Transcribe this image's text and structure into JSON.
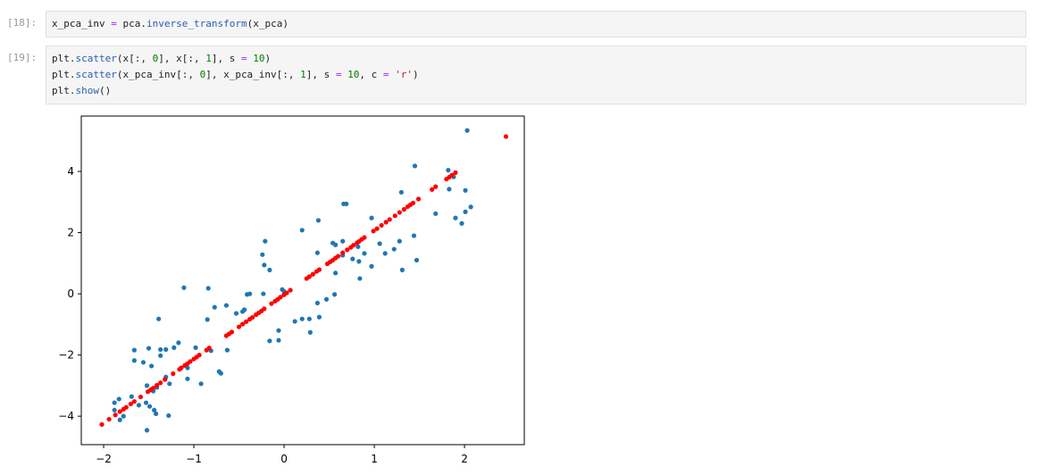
{
  "cells": [
    {
      "prompt": "[18]:",
      "lines": [
        "x_pca_inv = pca.inverse_transform(x_pca)"
      ]
    },
    {
      "prompt": "[19]:",
      "lines": [
        "plt.scatter(x[:, 0], x[:, 1], s = 10)",
        "plt.scatter(x_pca_inv[:, 0], x_pca_inv[:, 1], s = 10, c = 'r')",
        "plt.show()"
      ]
    }
  ],
  "chart_data": {
    "type": "scatter",
    "xlim": [
      -2.248,
      2.663
    ],
    "ylim": [
      -4.93,
      5.81
    ],
    "xticks": [
      {
        "value": -2,
        "label": "−2"
      },
      {
        "value": -1,
        "label": "−1"
      },
      0,
      1,
      2
    ],
    "yticks": [
      {
        "value": -4,
        "label": "−4"
      },
      {
        "value": -2,
        "label": "−2"
      },
      0,
      2,
      4
    ],
    "series": [
      {
        "color": "#1f77b4",
        "x": [
          2.03,
          1.45,
          1.82,
          1.88,
          1.83,
          2.01,
          1.3,
          1.68,
          2.07,
          2.01,
          1.9,
          1.97,
          0.97,
          0.66,
          0.69,
          0.38,
          0.2,
          1.44,
          1.28,
          0.65,
          0.54,
          0.57,
          1.22,
          1.06,
          0.89,
          1.12,
          0.82,
          1.47,
          0.76,
          0.65,
          0.83,
          1.31,
          0.97,
          0.84,
          -0.21,
          0.37,
          -0.24,
          -0.22,
          -0.16,
          0.57,
          -0.38,
          -0.41,
          -0.23,
          -0.02,
          0.0,
          -1.11,
          -0.84,
          -0.64,
          -0.53,
          -0.46,
          -0.44,
          -0.77,
          -0.85,
          0.56,
          0.47,
          0.37,
          0.39,
          0.2,
          0.28,
          0.12,
          0.29,
          -0.06,
          -0.16,
          -0.06,
          -1.39,
          -1.66,
          -1.5,
          -1.37,
          -1.31,
          -1.22,
          -1.17,
          -0.98,
          -0.81,
          -0.72,
          -0.7,
          -0.63,
          -1.66,
          -1.56,
          -1.47,
          -1.37,
          -1.07,
          -1.07,
          -0.92,
          -1.31,
          -1.52,
          -1.27,
          -1.47,
          -1.41,
          -1.88,
          -1.83,
          -1.69,
          -1.45,
          -1.53,
          -1.61,
          -1.49,
          -1.44,
          -1.42,
          -1.78,
          -1.82,
          -1.28,
          -1.88,
          -1.52
        ],
        "values": [
          5.34,
          4.18,
          4.04,
          3.82,
          3.42,
          3.38,
          3.32,
          2.62,
          2.84,
          2.68,
          2.48,
          2.3,
          2.48,
          2.94,
          2.94,
          2.4,
          2.08,
          1.9,
          1.72,
          1.72,
          1.66,
          1.6,
          1.46,
          1.64,
          1.32,
          1.32,
          1.54,
          1.1,
          1.14,
          1.26,
          1.06,
          0.78,
          0.9,
          0.5,
          1.72,
          1.34,
          1.28,
          0.94,
          0.78,
          0.68,
          0.0,
          -0.02,
          0.0,
          0.14,
          0.08,
          0.2,
          0.18,
          -0.38,
          -0.64,
          -0.58,
          -0.52,
          -0.44,
          -0.84,
          -0.02,
          -0.18,
          -0.3,
          -0.76,
          -0.82,
          -0.82,
          -0.9,
          -1.26,
          -1.2,
          -1.54,
          -1.52,
          -0.82,
          -1.84,
          -1.78,
          -1.82,
          -1.82,
          -1.76,
          -1.6,
          -1.76,
          -1.86,
          -2.54,
          -2.6,
          -1.84,
          -2.18,
          -2.24,
          -2.36,
          -2.02,
          -2.42,
          -2.78,
          -2.94,
          -2.72,
          -3.0,
          -2.94,
          -3.12,
          -3.06,
          -3.56,
          -3.44,
          -3.36,
          -3.18,
          -3.56,
          -3.64,
          -3.68,
          -3.8,
          -3.92,
          -4.0,
          -4.12,
          -3.98,
          -3.8,
          -4.46
        ]
      },
      {
        "color": "#ff0000",
        "x": [
          -2.02,
          -1.94,
          -1.87,
          -1.82,
          -1.78,
          -1.75,
          -1.7,
          -1.66,
          -1.59,
          -1.51,
          -1.48,
          -1.45,
          -1.41,
          -1.37,
          -1.32,
          -1.23,
          -1.16,
          -1.14,
          -1.1,
          -1.07,
          -1.04,
          -1.0,
          -0.97,
          -0.94,
          -0.86,
          -0.83,
          -0.64,
          -0.61,
          -0.58,
          -0.5,
          -0.46,
          -0.42,
          -0.38,
          -0.35,
          -0.31,
          -0.28,
          -0.25,
          -0.22,
          -0.14,
          -0.1,
          -0.07,
          -0.04,
          0.0,
          0.03,
          0.07,
          0.25,
          0.28,
          0.32,
          0.36,
          0.39,
          0.48,
          0.51,
          0.54,
          0.57,
          0.6,
          0.65,
          0.7,
          0.74,
          0.77,
          0.81,
          0.83,
          0.86,
          0.89,
          0.99,
          1.03,
          1.08,
          1.13,
          1.17,
          1.23,
          1.28,
          1.33,
          1.37,
          1.4,
          1.43,
          1.49,
          1.64,
          1.68,
          1.8,
          1.83,
          1.86,
          1.9,
          2.46
        ],
        "values": [
          -4.27,
          -4.1,
          -3.96,
          -3.85,
          -3.77,
          -3.71,
          -3.6,
          -3.52,
          -3.37,
          -3.2,
          -3.14,
          -3.08,
          -2.99,
          -2.91,
          -2.8,
          -2.61,
          -2.47,
          -2.42,
          -2.34,
          -2.28,
          -2.21,
          -2.13,
          -2.07,
          -2.0,
          -1.84,
          -1.77,
          -1.37,
          -1.31,
          -1.25,
          -1.08,
          -0.99,
          -0.91,
          -0.83,
          -0.77,
          -0.68,
          -0.62,
          -0.56,
          -0.49,
          -0.32,
          -0.24,
          -0.18,
          -0.11,
          -0.03,
          0.03,
          0.12,
          0.5,
          0.56,
          0.64,
          0.73,
          0.79,
          0.98,
          1.04,
          1.1,
          1.17,
          1.23,
          1.34,
          1.44,
          1.52,
          1.59,
          1.67,
          1.71,
          1.78,
          1.84,
          2.05,
          2.13,
          2.24,
          2.34,
          2.43,
          2.55,
          2.66,
          2.76,
          2.85,
          2.91,
          2.97,
          3.1,
          3.41,
          3.5,
          3.75,
          3.81,
          3.88,
          3.96,
          5.14
        ]
      }
    ]
  }
}
